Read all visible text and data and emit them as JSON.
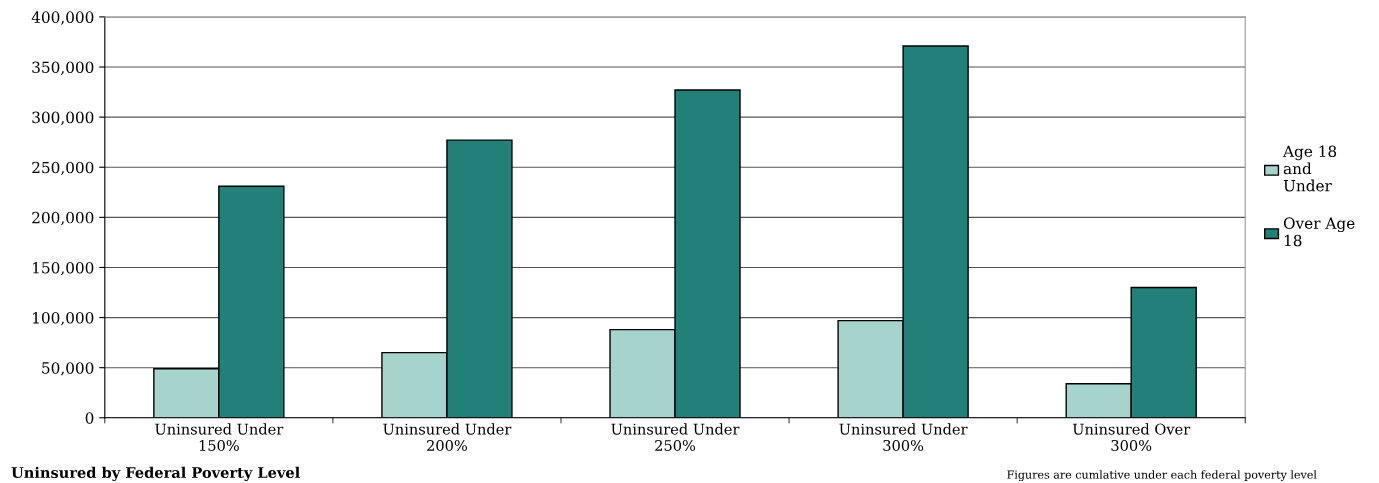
{
  "chart_data": {
    "type": "bar",
    "title": "Uninsured by Federal Poverty Level",
    "categories": [
      "Uninsured Under 150%",
      "Uninsured Under 200%",
      "Uninsured Under 250%",
      "Uninsured Under 300%",
      "Uninsured Over 300%"
    ],
    "series": [
      {
        "name": "Age 18 and Under",
        "color": "#a6d3cc",
        "values": [
          49000,
          65000,
          88000,
          97000,
          34000
        ]
      },
      {
        "name": "Over Age 18",
        "color": "#238078",
        "values": [
          231000,
          277000,
          327000,
          371000,
          130000
        ]
      }
    ],
    "ylim": [
      0,
      400000
    ],
    "yticks": [
      {
        "value": 0,
        "label": "0"
      },
      {
        "value": 50000,
        "label": "50,000"
      },
      {
        "value": 100000,
        "label": "100,000"
      },
      {
        "value": 150000,
        "label": "150,000"
      },
      {
        "value": 200000,
        "label": "200,000"
      },
      {
        "value": 250000,
        "label": "250,000"
      },
      {
        "value": 300000,
        "label": "300,000"
      },
      {
        "value": 350000,
        "label": "350,000"
      },
      {
        "value": 400000,
        "label": "400,000"
      }
    ],
    "grid": "y",
    "legend": "right",
    "annotations": [
      "Figures are cumlative under each federal poverty level"
    ]
  }
}
